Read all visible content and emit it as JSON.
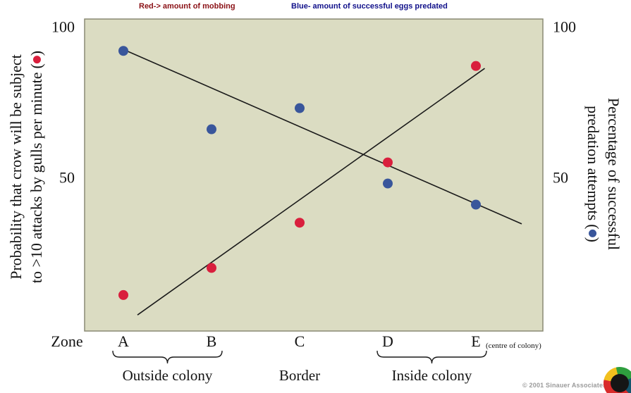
{
  "annotations": {
    "red": {
      "text": "Red-> amount of mobbing",
      "color": "#8a1015"
    },
    "blue": {
      "text": "Blue- amount of successful eggs predated",
      "color": "#10108a"
    }
  },
  "footer": {
    "copyright": "© 2001 Sinauer Associates"
  },
  "chart_data": {
    "type": "scatter",
    "title": "",
    "categories": [
      "A",
      "B",
      "C",
      "D",
      "E"
    ],
    "x_title": "Zone",
    "x_note": "(centre of colony)",
    "ylim": [
      0,
      105
    ],
    "yticks": [
      100,
      50
    ],
    "grid": false,
    "plot_bg": "#dbdcc2",
    "left_axis": {
      "line1": "Probability that crow will be subject",
      "line2": "to >10 attacks by gulls per minute",
      "marker_series": "mobbing"
    },
    "right_axis": {
      "line1": "Percentage of successful",
      "line2": "predation attempts",
      "marker_series": "predation"
    },
    "series": [
      {
        "name": "mobbing",
        "label": "amount of mobbing (red)",
        "color": "#d91f3d",
        "values": [
          11,
          20,
          35,
          55,
          87
        ]
      },
      {
        "name": "predation",
        "label": "successful eggs predated (blue)",
        "color": "#39569b",
        "values": [
          92,
          66,
          73,
          48,
          41
        ]
      }
    ],
    "trend_lines": [
      {
        "series": "mobbing",
        "x1": 0.16,
        "y1": 4.4,
        "x2": 4.1,
        "y2": 86.2
      },
      {
        "series": "predation",
        "x1": -0.04,
        "y1": 93,
        "x2": 4.52,
        "y2": 34.6
      }
    ],
    "groups": [
      {
        "label": "Outside colony",
        "from": 0,
        "to": 1,
        "brace": true
      },
      {
        "label": "Border",
        "from": 2,
        "to": 2,
        "brace": false
      },
      {
        "label": "Inside colony",
        "from": 3,
        "to": 4,
        "brace": true
      }
    ]
  }
}
